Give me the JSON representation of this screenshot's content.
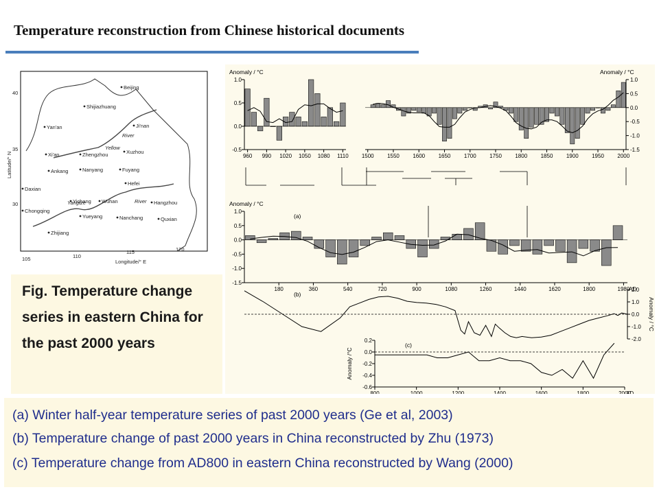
{
  "title": "Temperature reconstruction from Chinese historical documents",
  "fig_box_text": "Fig.  Temperature change series in eastern China for the past 2000 years",
  "captions": [
    "(a) Winter half-year temperature series of past 2000 years (Ge et al, 2003)",
    "(b) Temperature change of past 2000 years in China reconstructed by Zhu (1973)",
    "(c) Temperature change from AD800 in eastern China reconstructed by Wang (2000)"
  ],
  "map": {
    "cities": [
      "Beijing",
      "Shijiazhuang",
      "Ji'nan",
      "Yan'an",
      "Xi'an",
      "Zhengzhou",
      "Xuzhou",
      "Nanyang",
      "Fuyang",
      "Hefei",
      "Ankang",
      "Daxian",
      "Yichang",
      "Wuhan",
      "Hangzhou",
      "Chongqing",
      "Yueyang",
      "Nanchang",
      "Quxian",
      "Zhijiang"
    ],
    "rivers": [
      "Yellow",
      "River",
      "Yangtze",
      "River"
    ],
    "lon_ticks": [
      "105",
      "110",
      "115",
      "120"
    ],
    "lat_ticks": [
      "40",
      "35",
      "30"
    ],
    "xlabel": "Longitude/° E",
    "ylabel": "Latitude/° N"
  },
  "chart_data": [
    {
      "type": "bar",
      "panel": "top-left",
      "ylabel": "Anomaly / °C",
      "x_ticks": [
        "960",
        "990",
        "1020",
        "1050",
        "1080",
        "1110"
      ],
      "y_ticks": [
        "1.0",
        "0.5",
        "0.0",
        "-0.5"
      ],
      "xlim": [
        955,
        1115
      ],
      "ylim": [
        -0.5,
        1.0
      ],
      "x": [
        960,
        970,
        980,
        990,
        1000,
        1010,
        1020,
        1030,
        1040,
        1050,
        1060,
        1070,
        1080,
        1090,
        1100,
        1110
      ],
      "values": [
        0.8,
        0.3,
        -0.1,
        0.6,
        0.0,
        -0.3,
        0.2,
        0.3,
        0.2,
        0.1,
        1.0,
        0.7,
        0.2,
        0.4,
        0.1,
        0.5
      ]
    },
    {
      "type": "bar",
      "panel": "top-right",
      "ylabel": "Anomaly / °C",
      "x_ticks": [
        "1500",
        "1550",
        "1600",
        "1650",
        "1700",
        "1750",
        "1800",
        "1850",
        "1900",
        "1950",
        "2000"
      ],
      "y_ticks": [
        "1.0",
        "0.5",
        "0.0",
        "-0.5",
        "-1.0",
        "-1.5"
      ],
      "xlim": [
        1495,
        2005
      ],
      "ylim": [
        -1.5,
        1.0
      ],
      "x": [
        1510,
        1520,
        1530,
        1540,
        1550,
        1560,
        1570,
        1580,
        1590,
        1600,
        1610,
        1620,
        1630,
        1640,
        1650,
        1660,
        1670,
        1680,
        1690,
        1700,
        1710,
        1720,
        1730,
        1740,
        1750,
        1760,
        1770,
        1780,
        1790,
        1800,
        1810,
        1820,
        1830,
        1840,
        1850,
        1860,
        1870,
        1880,
        1890,
        1900,
        1910,
        1920,
        1930,
        1940,
        1950,
        1960,
        1970,
        1980,
        1990,
        2000
      ],
      "values": [
        0.1,
        0.15,
        0.1,
        0.25,
        0.1,
        -0.1,
        -0.3,
        -0.2,
        -0.1,
        -0.15,
        -0.2,
        -0.3,
        -0.2,
        -0.6,
        -1.2,
        -1.1,
        -0.4,
        -0.2,
        -0.1,
        0.0,
        -0.1,
        0.05,
        0.1,
        -0.05,
        0.2,
        0.05,
        -0.1,
        -0.2,
        -0.5,
        -0.8,
        -1.1,
        -0.7,
        -0.6,
        -0.6,
        -0.5,
        -0.2,
        -0.3,
        -0.6,
        -0.9,
        -1.3,
        -1.1,
        -0.6,
        -0.2,
        -0.1,
        0.0,
        -0.2,
        -0.1,
        0.1,
        0.6,
        0.9
      ]
    },
    {
      "type": "bar",
      "panel": "(a)",
      "ylabel": "Anomaly / °C",
      "x_ticks": [
        "180",
        "360",
        "540",
        "720",
        "900",
        "1080",
        "1260",
        "1440",
        "1620",
        "1800",
        "1980"
      ],
      "x_unit": "AD",
      "y_ticks": [
        "1.0",
        "0.5",
        "0.0",
        "-0.5",
        "-1.0",
        "-1.5"
      ],
      "xlim": [
        0,
        2000
      ],
      "ylim": [
        -1.5,
        1.0
      ],
      "x": [
        30,
        90,
        150,
        210,
        270,
        330,
        390,
        450,
        510,
        570,
        630,
        690,
        750,
        810,
        870,
        930,
        990,
        1050,
        1110,
        1170,
        1230,
        1290,
        1350,
        1410,
        1470,
        1530,
        1590,
        1650,
        1710,
        1770,
        1830,
        1890,
        1950
      ],
      "values": [
        0.15,
        -0.1,
        0.05,
        0.25,
        0.3,
        0.1,
        -0.3,
        -0.6,
        -0.85,
        -0.6,
        -0.2,
        0.1,
        0.25,
        0.15,
        -0.3,
        -0.6,
        -0.3,
        0.1,
        0.2,
        0.4,
        0.6,
        -0.4,
        -0.5,
        -0.2,
        -0.4,
        -0.5,
        -0.2,
        -0.4,
        -0.8,
        -0.3,
        -0.4,
        -0.9,
        0.5
      ]
    },
    {
      "type": "line",
      "panel": "(b)",
      "ylabel": "Anomaly / °C",
      "y_ticks": [
        "2.0",
        "1.0",
        "0.0",
        "-1.0",
        "-2.0"
      ],
      "ylim": [
        -2.0,
        2.0
      ],
      "xlim": [
        0,
        2000
      ],
      "x": [
        0,
        100,
        200,
        300,
        400,
        500,
        550,
        600,
        650,
        700,
        750,
        800,
        850,
        900,
        950,
        1000,
        1050,
        1100,
        1130,
        1150,
        1170,
        1200,
        1230,
        1260,
        1290,
        1310,
        1330,
        1360,
        1390,
        1420,
        1450,
        1500,
        1550,
        1600,
        1650,
        1700,
        1750,
        1800,
        1850,
        1900,
        1930,
        1950,
        1970,
        2000
      ],
      "values": [
        1.9,
        1.0,
        0.0,
        -1.0,
        -1.4,
        -0.3,
        0.6,
        0.9,
        1.2,
        1.4,
        1.45,
        1.3,
        1.05,
        0.95,
        0.9,
        0.8,
        0.6,
        0.3,
        -1.3,
        -1.6,
        -0.6,
        -1.5,
        -1.7,
        -0.9,
        -1.8,
        -0.8,
        -1.1,
        -1.5,
        -1.8,
        -1.9,
        -1.8,
        -1.9,
        -1.85,
        -1.7,
        -1.4,
        -1.1,
        -0.8,
        -0.5,
        -0.3,
        -0.1,
        0.05,
        -0.1,
        0.1,
        0.0
      ]
    },
    {
      "type": "line",
      "panel": "(c)",
      "ylabel": "Anomaly /°C",
      "x_ticks": [
        "800",
        "1000",
        "1200",
        "1400",
        "1600",
        "1800",
        "2000"
      ],
      "x_unit": "AD",
      "y_ticks": [
        "0.2",
        "0.0",
        "-0.2",
        "-0.4",
        "-0.6"
      ],
      "xlim": [
        800,
        2000
      ],
      "ylim": [
        -0.6,
        0.2
      ],
      "x": [
        800,
        850,
        900,
        950,
        1000,
        1050,
        1100,
        1150,
        1200,
        1250,
        1300,
        1350,
        1400,
        1450,
        1500,
        1550,
        1600,
        1650,
        1700,
        1750,
        1800,
        1850,
        1900,
        1950
      ],
      "values": [
        -0.05,
        -0.05,
        -0.05,
        -0.05,
        -0.05,
        -0.05,
        -0.1,
        -0.1,
        -0.05,
        0.0,
        -0.15,
        -0.15,
        -0.1,
        -0.15,
        -0.15,
        -0.2,
        -0.35,
        -0.4,
        -0.3,
        -0.45,
        -0.15,
        -0.45,
        -0.05,
        0.15
      ]
    }
  ]
}
